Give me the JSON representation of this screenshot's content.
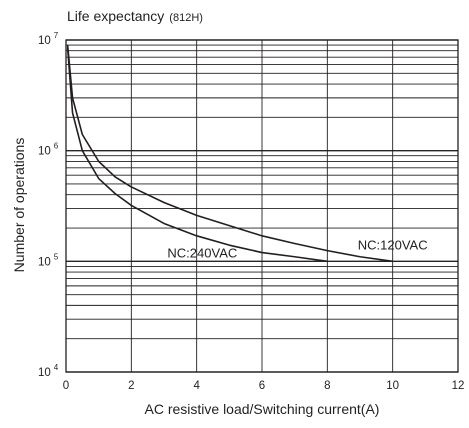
{
  "chart_data": {
    "type": "line",
    "title": "Life expectancy",
    "subtitle": "(812H)",
    "xlabel": "AC resistive load/Switching current(A)",
    "ylabel": "Number of operations",
    "x_scale": "linear",
    "y_scale": "log",
    "xlim": [
      0,
      12
    ],
    "ylim": [
      10000,
      10000000
    ],
    "x_ticks": [
      "0",
      "2",
      "4",
      "6",
      "8",
      "10",
      "12"
    ],
    "y_ticks": [
      {
        "base": "10",
        "exp": "4",
        "value": 10000
      },
      {
        "base": "10",
        "exp": "5",
        "value": 100000
      },
      {
        "base": "10",
        "exp": "6",
        "value": 1000000
      },
      {
        "base": "10",
        "exp": "7",
        "value": 10000000
      }
    ],
    "grid": true,
    "series": [
      {
        "name": "NC:120VAC",
        "x": [
          0.05,
          0.2,
          0.5,
          1,
          1.5,
          2,
          3,
          4,
          5,
          6,
          7,
          8,
          9,
          10
        ],
        "y": [
          9000000,
          3000000,
          1400000,
          800000,
          580000,
          470000,
          340000,
          260000,
          210000,
          170000,
          145000,
          125000,
          110000,
          100000
        ]
      },
      {
        "name": "NC:240VAC",
        "x": [
          0.05,
          0.2,
          0.5,
          1,
          1.5,
          2,
          3,
          4,
          5,
          6,
          7,
          8
        ],
        "y": [
          8500000,
          2200000,
          1000000,
          560000,
          410000,
          320000,
          220000,
          170000,
          140000,
          120000,
          110000,
          100000
        ]
      }
    ],
    "annotations": [
      {
        "text": "NC:120VAC",
        "series": "NC:120VAC"
      },
      {
        "text": "NC:240VAC",
        "series": "NC:240VAC"
      }
    ],
    "line_color": "#231f20"
  }
}
